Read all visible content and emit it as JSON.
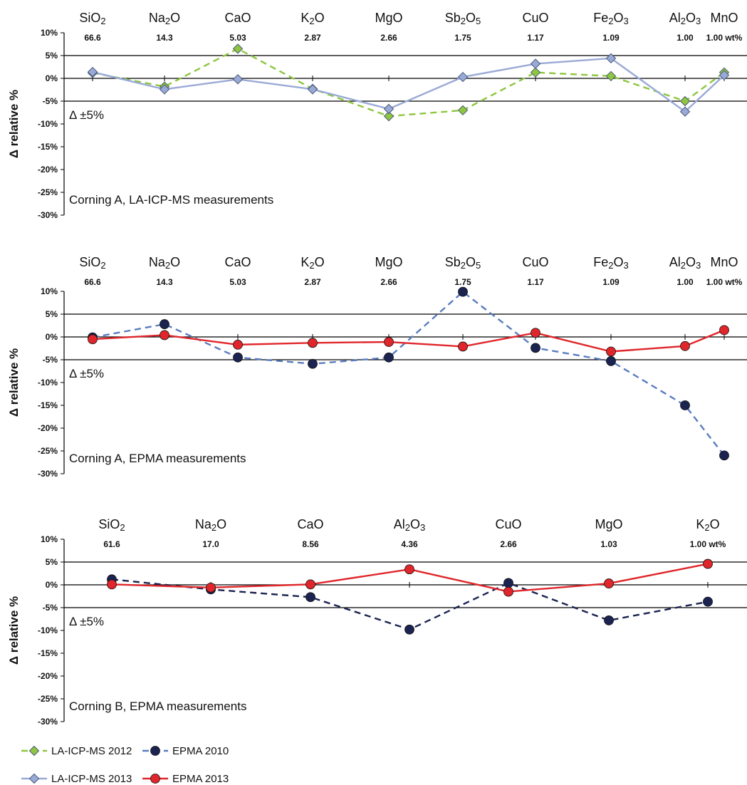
{
  "colors": {
    "la2012": "#8ec63f",
    "la2013": "#9aaad6",
    "epma2010": "#1b2350",
    "epma2010_line": "#5a7cc0",
    "epma2013": "#e0262b",
    "axis": "#000000"
  },
  "legend": [
    {
      "id": "la2012",
      "label": "LA-ICP-MS 2012",
      "marker": "diamond",
      "dash": true
    },
    {
      "id": "epma2010",
      "label": "EPMA 2010",
      "marker": "circle",
      "dash": true
    },
    {
      "id": "la2013",
      "label": "LA-ICP-MS 2013",
      "marker": "diamond",
      "dash": false
    },
    {
      "id": "epma2013",
      "label": "EPMA 2013",
      "marker": "circle",
      "dash": false
    }
  ],
  "chart_data": [
    {
      "type": "line",
      "categories": [
        [
          "SiO",
          "2",
          ""
        ],
        [
          "Na",
          "2",
          "O"
        ],
        [
          "CaO"
        ],
        [
          "K",
          "2",
          "O"
        ],
        [
          "MgO"
        ],
        [
          "Sb",
          "2",
          "O",
          "5",
          ""
        ],
        [
          "CuO"
        ],
        [
          "Fe",
          "2",
          "O",
          "3",
          ""
        ],
        [
          "Al",
          "2",
          "O",
          "3",
          ""
        ],
        [
          "MnO"
        ]
      ],
      "concentrations": [
        "66.6",
        "14.3",
        "5.03",
        "2.87",
        "2.66",
        "1.75",
        "1.17",
        "1.09",
        "1.00",
        "1.00 wt%"
      ],
      "ylabel": "Δ relative %",
      "ylim": [
        -30,
        10
      ],
      "yticks": [
        10,
        5,
        0,
        -5,
        -10,
        -15,
        -20,
        -25,
        -30
      ],
      "tick_labels": [
        "10%",
        "5%",
        "0%",
        "-5%",
        "-10%",
        "-15%",
        "-20%",
        "-25%",
        "-30%"
      ],
      "reference_lines": [
        5,
        0,
        -5
      ],
      "band_label": "Δ ±5%",
      "annotation": "Corning A, LA-ICP-MS measurements",
      "series": [
        {
          "name": "LA-ICP-MS 2012",
          "key": "la2012",
          "values": [
            1.2,
            -1.8,
            6.5,
            -2.3,
            -8.3,
            -7.0,
            1.3,
            0.5,
            -5.0,
            1.3
          ]
        },
        {
          "name": "LA-ICP-MS 2013",
          "key": "la2013",
          "values": [
            1.4,
            -2.4,
            -0.2,
            -2.4,
            -6.7,
            0.3,
            3.2,
            4.4,
            -7.3,
            0.7
          ]
        }
      ]
    },
    {
      "type": "line",
      "categories": [
        [
          "SiO",
          "2",
          ""
        ],
        [
          "Na",
          "2",
          "O"
        ],
        [
          "CaO"
        ],
        [
          "K",
          "2",
          "O"
        ],
        [
          "MgO"
        ],
        [
          "Sb",
          "2",
          "O",
          "5",
          ""
        ],
        [
          "CuO"
        ],
        [
          "Fe",
          "2",
          "O",
          "3",
          ""
        ],
        [
          "Al",
          "2",
          "O",
          "3",
          ""
        ],
        [
          "MnO"
        ]
      ],
      "concentrations": [
        "66.6",
        "14.3",
        "5.03",
        "2.87",
        "2.66",
        "1.75",
        "1.17",
        "1.09",
        "1.00",
        "1.00 wt%"
      ],
      "ylabel": "Δ relative %",
      "ylim": [
        -30,
        10
      ],
      "yticks": [
        10,
        5,
        0,
        -5,
        -10,
        -15,
        -20,
        -25,
        -30
      ],
      "tick_labels": [
        "10%",
        "5%",
        "0%",
        "-5%",
        "-10%",
        "-15%",
        "-20%",
        "-25%",
        "-30%"
      ],
      "reference_lines": [
        5,
        0,
        -5
      ],
      "band_label": "Δ ±5%",
      "annotation": "Corning A, EPMA measurements",
      "series": [
        {
          "name": "EPMA 2010",
          "key": "epma2010",
          "values": [
            -0.1,
            2.8,
            -4.5,
            -5.9,
            -4.5,
            9.9,
            -2.4,
            -5.3,
            -15.0,
            -26.0
          ]
        },
        {
          "name": "EPMA 2013",
          "key": "epma2013",
          "values": [
            -0.5,
            0.4,
            -1.7,
            -1.3,
            -1.1,
            -2.1,
            0.9,
            -3.2,
            -2.0,
            1.5
          ]
        }
      ]
    },
    {
      "type": "line",
      "categories": [
        [
          "SiO",
          "2",
          ""
        ],
        [
          "Na",
          "2",
          "O"
        ],
        [
          "CaO"
        ],
        [
          "Al",
          "2",
          "O",
          "3",
          ""
        ],
        [
          "CuO"
        ],
        [
          "MgO"
        ],
        [
          "K",
          "2",
          "O"
        ]
      ],
      "concentrations": [
        "61.6",
        "17.0",
        "8.56",
        "4.36",
        "2.66",
        "1.03",
        "1.00 wt%"
      ],
      "ylabel": "Δ relative %",
      "ylim": [
        -30,
        10
      ],
      "yticks": [
        10,
        5,
        0,
        -5,
        -10,
        -15,
        -20,
        -25,
        -30
      ],
      "tick_labels": [
        "10%",
        "5%",
        "0%",
        "-5%",
        "-10%",
        "-15%",
        "-20%",
        "-25%",
        "-30%"
      ],
      "reference_lines": [
        5,
        0,
        -5
      ],
      "band_label": "Δ ±5%",
      "annotation": "Corning B, EPMA measurements",
      "series": [
        {
          "name": "EPMA 2010",
          "key": "epma2010",
          "values": [
            1.2,
            -1.0,
            -2.7,
            -9.8,
            0.4,
            -7.8,
            -3.7
          ]
        },
        {
          "name": "EPMA 2013",
          "key": "epma2013",
          "values": [
            0.1,
            -0.6,
            0.1,
            3.4,
            -1.5,
            0.3,
            4.6
          ]
        }
      ]
    }
  ]
}
